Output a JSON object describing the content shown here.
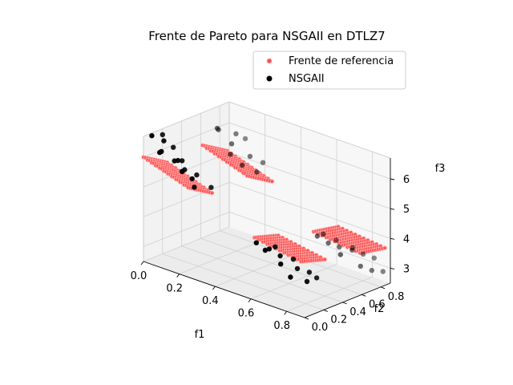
{
  "chart_data": {
    "type": "scatter",
    "projection": "3d",
    "title": "Frente de Pareto para NSGAII en DTLZ7",
    "xlabel": "f1",
    "ylabel": "f2",
    "zlabel": "f3",
    "xlim": [
      0.0,
      0.9
    ],
    "ylim": [
      0.0,
      0.9
    ],
    "zlim": [
      2.5,
      6.7
    ],
    "xticks": [
      "0.0",
      "0.2",
      "0.4",
      "0.6",
      "0.8"
    ],
    "yticks": [
      "0.0",
      "0.2",
      "0.4",
      "0.6",
      "0.8"
    ],
    "zticks": [
      "3",
      "4",
      "5",
      "6"
    ],
    "grid": true,
    "legend_position": "top-right",
    "series": [
      {
        "name": "Frente de referencia",
        "color": "#ff4d4d",
        "marker": "dot",
        "regions": [
          {
            "f1": [
              0.0,
              0.25
            ],
            "f2": [
              0.0,
              0.25
            ],
            "f3_at_origin": 6.0,
            "f3_slope": -4.0
          },
          {
            "f1": [
              0.0,
              0.25
            ],
            "f2": [
              0.62,
              0.88
            ],
            "f3_at_origin": 5.6,
            "f3_slope": -4.0
          },
          {
            "f1": [
              0.62,
              0.88
            ],
            "f2": [
              0.0,
              0.25
            ],
            "f3_at_origin": 4.6,
            "f3_slope": -2.0
          },
          {
            "f1": [
              0.62,
              0.88
            ],
            "f2": [
              0.62,
              0.88
            ],
            "f3_at_origin": 4.0,
            "f3_slope": -1.3
          }
        ]
      },
      {
        "name": "NSGAII",
        "color": "#000000",
        "marker": "circle",
        "points": [
          [
            0.02,
            0.05,
            6.7
          ],
          [
            0.05,
            0.12,
            6.5
          ],
          [
            0.08,
            0.02,
            6.3
          ],
          [
            0.12,
            0.18,
            5.9
          ],
          [
            0.15,
            0.08,
            6.1
          ],
          [
            0.18,
            0.22,
            5.5
          ],
          [
            0.22,
            0.12,
            5.3
          ],
          [
            0.1,
            0.0,
            6.4
          ],
          [
            0.25,
            0.24,
            5.2
          ],
          [
            0.06,
            0.2,
            6.2
          ],
          [
            0.2,
            0.03,
            5.9
          ],
          [
            0.15,
            0.15,
            5.7
          ],
          [
            0.0,
            0.2,
            6.5
          ],
          [
            0.24,
            0.06,
            5.7
          ],
          [
            0.12,
            0.1,
            6.0
          ],
          [
            0.05,
            0.68,
            6.2
          ],
          [
            0.12,
            0.7,
            5.8
          ],
          [
            0.18,
            0.78,
            5.4
          ],
          [
            0.22,
            0.84,
            5.2
          ],
          [
            0.08,
            0.82,
            5.9
          ],
          [
            0.15,
            0.63,
            5.6
          ],
          [
            0.25,
            0.72,
            5.1
          ],
          [
            0.02,
            0.75,
            6.0
          ],
          [
            0.2,
            0.66,
            5.3
          ],
          [
            0.1,
            0.88,
            5.7
          ],
          [
            0.62,
            0.02,
            4.4
          ],
          [
            0.66,
            0.08,
            4.2
          ],
          [
            0.7,
            0.12,
            4.0
          ],
          [
            0.74,
            0.05,
            3.9
          ],
          [
            0.78,
            0.15,
            3.7
          ],
          [
            0.82,
            0.2,
            3.6
          ],
          [
            0.86,
            0.1,
            3.5
          ],
          [
            0.64,
            0.18,
            4.1
          ],
          [
            0.72,
            0.22,
            3.8
          ],
          [
            0.8,
            0.04,
            3.6
          ],
          [
            0.68,
            0.0,
            4.3
          ],
          [
            0.84,
            0.24,
            3.4
          ],
          [
            0.62,
            0.66,
            3.8
          ],
          [
            0.66,
            0.7,
            3.6
          ],
          [
            0.7,
            0.74,
            3.5
          ],
          [
            0.74,
            0.8,
            3.4
          ],
          [
            0.78,
            0.84,
            3.3
          ],
          [
            0.82,
            0.88,
            3.2
          ],
          [
            0.86,
            0.78,
            3.0
          ],
          [
            0.64,
            0.82,
            3.5
          ],
          [
            0.76,
            0.64,
            3.5
          ],
          [
            0.84,
            0.7,
            3.2
          ],
          [
            0.88,
            0.86,
            2.9
          ],
          [
            0.7,
            0.88,
            3.3
          ],
          [
            0.6,
            0.76,
            3.7
          ]
        ]
      }
    ]
  }
}
